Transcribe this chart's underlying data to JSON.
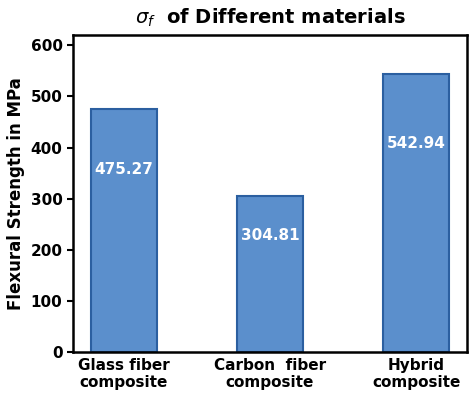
{
  "categories": [
    "Glass fiber\ncomposite",
    "Carbon  fiber\ncomposite",
    "Hybrid\ncomposite"
  ],
  "values": [
    475.27,
    304.81,
    542.94
  ],
  "bar_color": "#5b8fcc",
  "bar_edgecolor": "#2b5fa0",
  "title": "$\\sigma_f$  of Different materials",
  "ylabel": "Flexural Strength in MPa",
  "ylim": [
    0,
    620
  ],
  "yticks": [
    0,
    100,
    200,
    300,
    400,
    500,
    600
  ],
  "bar_labels": [
    "475.27",
    "304.81",
    "542.94"
  ],
  "bar_label_color": "white",
  "bar_label_fontsize": 11,
  "title_fontsize": 14,
  "ylabel_fontsize": 12,
  "xlabel_fontsize": 11,
  "tick_fontsize": 11,
  "background_color": "#ffffff",
  "bar_width": 0.45
}
